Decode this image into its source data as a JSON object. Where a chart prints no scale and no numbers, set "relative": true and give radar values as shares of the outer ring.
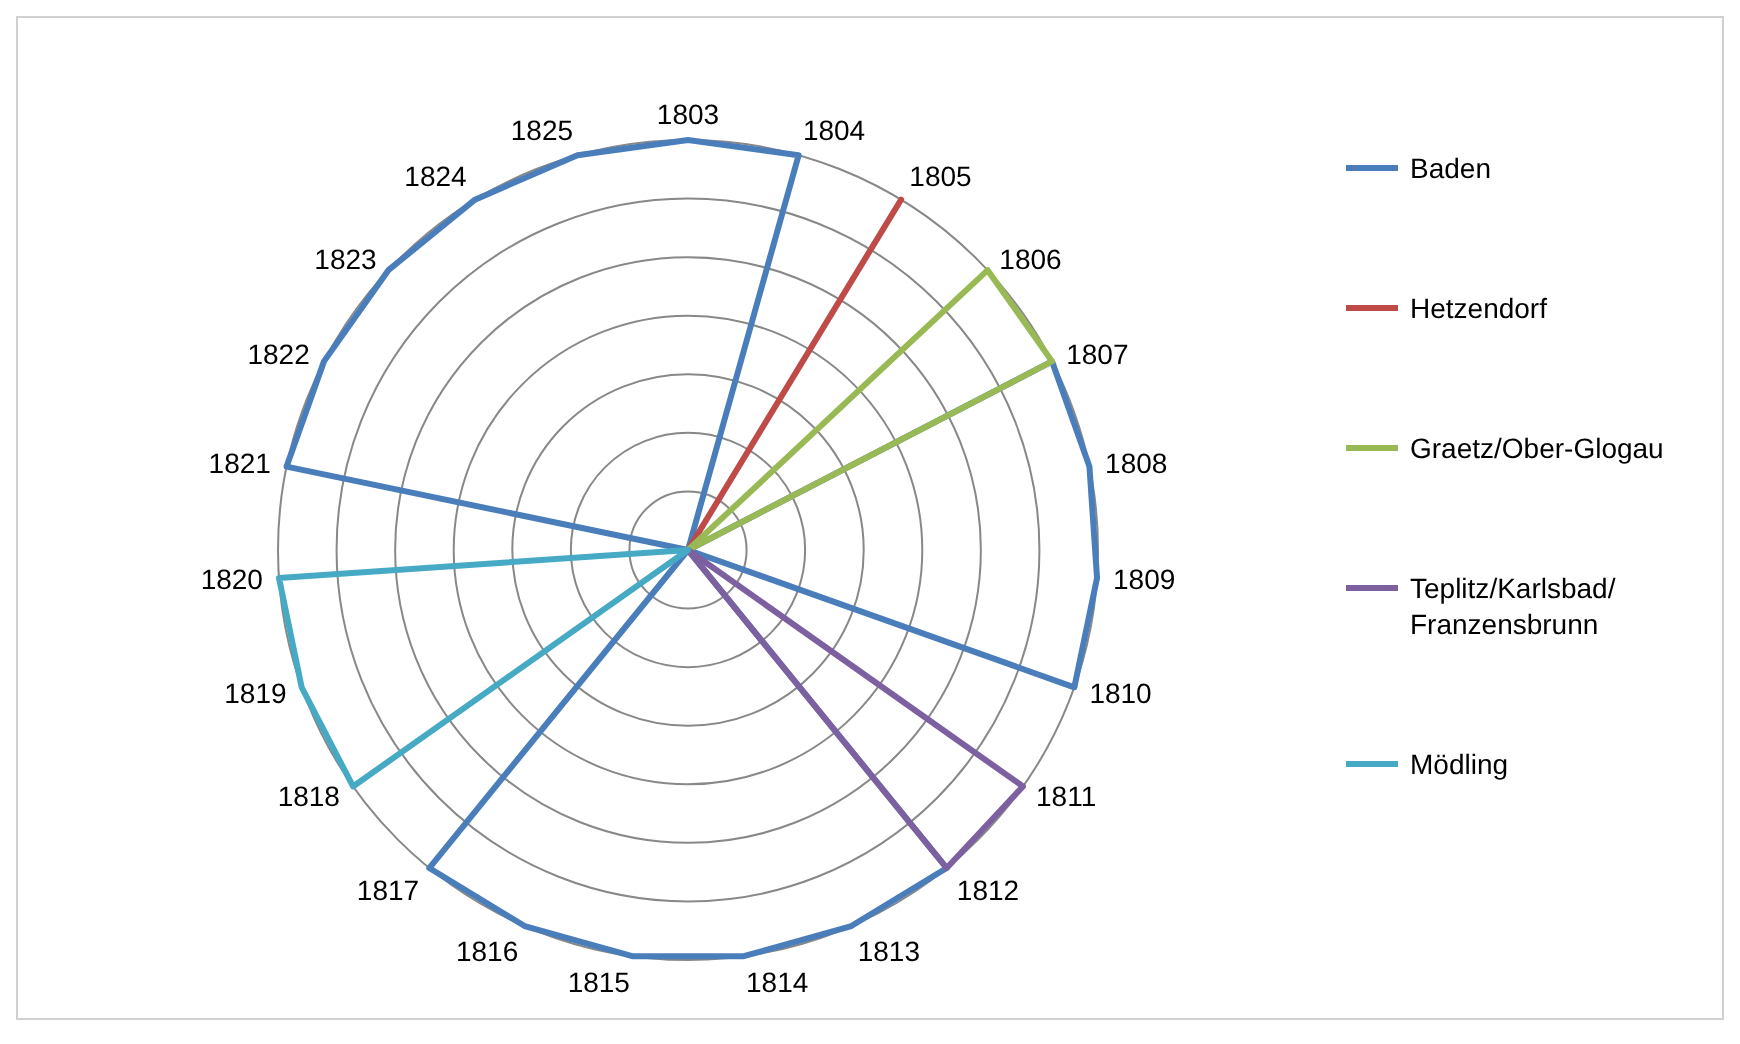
{
  "chart_data": {
    "type": "radar",
    "relative": true,
    "grid": true,
    "legend": "right",
    "marker": "none",
    "categories": [
      "1803",
      "1804",
      "1805",
      "1806",
      "1807",
      "1808",
      "1809",
      "1810",
      "1811",
      "1812",
      "1813",
      "1814",
      "1815",
      "1816",
      "1817",
      "1818",
      "1819",
      "1820",
      "1821",
      "1822",
      "1823",
      "1824",
      "1825"
    ],
    "series": [
      {
        "name": "Baden",
        "color": "#4a7ebb",
        "values": [
          1,
          1,
          0,
          0,
          1,
          1,
          1,
          1,
          0,
          1,
          1,
          1,
          1,
          1,
          1,
          0,
          0,
          0,
          1,
          1,
          1,
          1,
          1
        ]
      },
      {
        "name": "Hetzendorf",
        "color": "#be4b48",
        "values": [
          0,
          0,
          1,
          0,
          0,
          0,
          0,
          0,
          0,
          0,
          0,
          0,
          0,
          0,
          0,
          0,
          0,
          0,
          0,
          0,
          0,
          0,
          0
        ]
      },
      {
        "name": "Graetz/Ober-Glogau",
        "color": "#98b954",
        "values": [
          0,
          0,
          0,
          1,
          1,
          0,
          0,
          0,
          0,
          0,
          0,
          0,
          0,
          0,
          0,
          0,
          0,
          0,
          0,
          0,
          0,
          0,
          0
        ]
      },
      {
        "name": "Teplitz/Karlsbad/Franzensbrunn",
        "color": "#7d60a0",
        "values": [
          0,
          0,
          0,
          0,
          0,
          0,
          0,
          0,
          1,
          1,
          0,
          0,
          0,
          0,
          0,
          0,
          0,
          0,
          0,
          0,
          0,
          0,
          0
        ]
      },
      {
        "name": "Mödling",
        "color": "#46aac5",
        "values": [
          0,
          0,
          0,
          0,
          0,
          0,
          0,
          0,
          0,
          0,
          0,
          0,
          0,
          0,
          0,
          1,
          1,
          1,
          0,
          0,
          0,
          0,
          0
        ]
      }
    ]
  }
}
